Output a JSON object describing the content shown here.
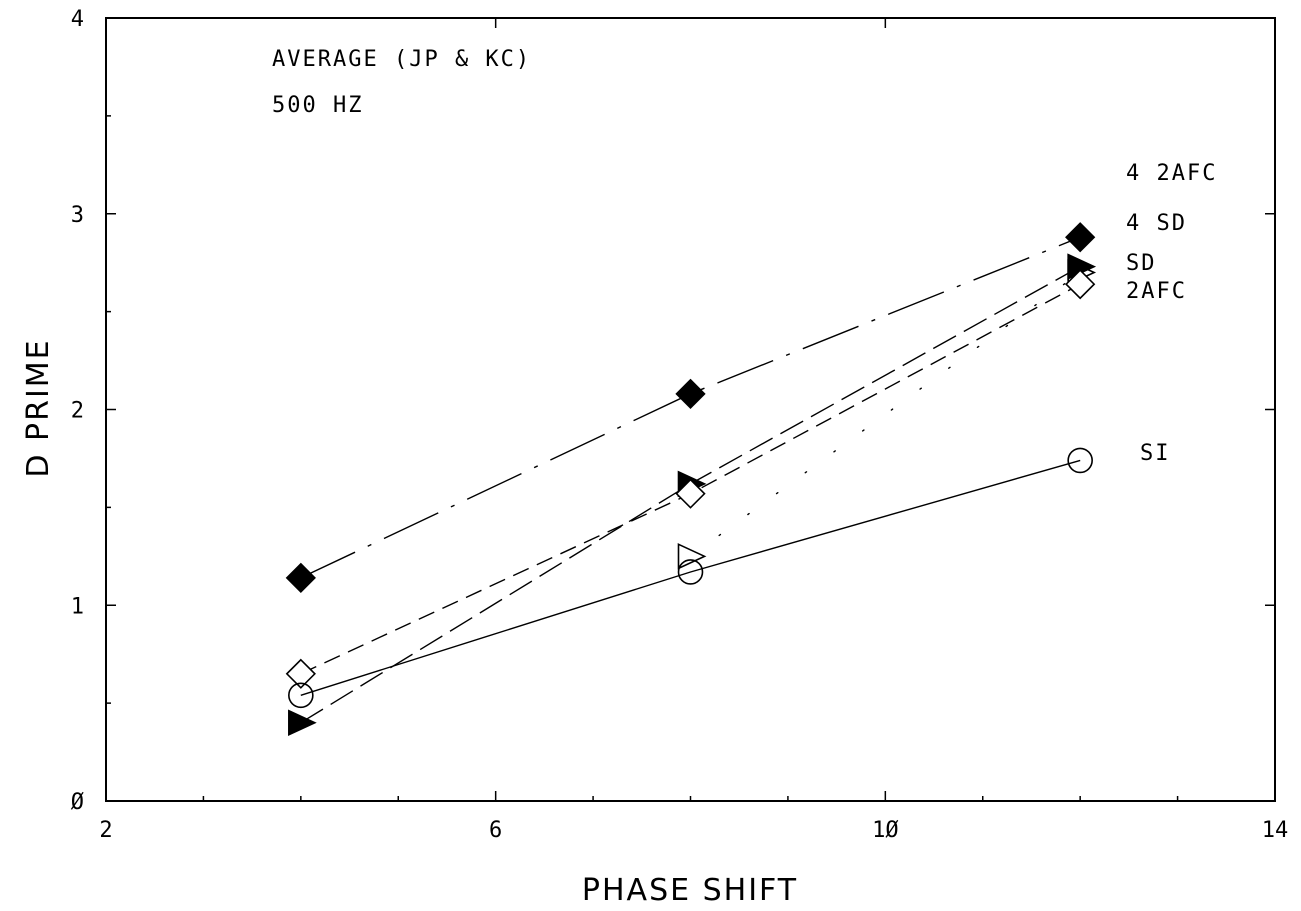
{
  "chart_data": {
    "type": "line",
    "title": "AVERAGE   (JP & KC)",
    "subtitle": "500 HZ",
    "xlabel": "PHASE   SHIFT",
    "ylabel": "D  PRIME",
    "xlim": [
      2,
      14
    ],
    "ylim": [
      0,
      4
    ],
    "xticks": [
      2,
      6,
      10,
      14
    ],
    "xtick_labels": [
      "2",
      "6",
      "1Ø",
      "14"
    ],
    "yticks": [
      0,
      1,
      2,
      3,
      4
    ],
    "ytick_labels": [
      "Ø",
      "1",
      "2",
      "3",
      "4"
    ],
    "grid": false,
    "x": [
      4,
      8,
      12
    ],
    "series": [
      {
        "name": "4  2AFC",
        "values": [
          null,
          1.25,
          2.7
        ],
        "marker": "open-triangle",
        "line": "dotted"
      },
      {
        "name": "4  SD",
        "values": [
          1.14,
          2.08,
          2.88
        ],
        "marker": "filled-diamond",
        "line": "dash-dot"
      },
      {
        "name": "SD",
        "values": [
          0.4,
          1.62,
          2.73
        ],
        "marker": "filled-triangle",
        "line": "long-dash"
      },
      {
        "name": "2AFC",
        "values": [
          0.65,
          1.57,
          2.64
        ],
        "marker": "open-diamond",
        "line": "dashed"
      },
      {
        "name": "SI",
        "values": [
          0.54,
          1.17,
          1.74
        ],
        "marker": "open-circle",
        "line": "solid"
      }
    ]
  }
}
